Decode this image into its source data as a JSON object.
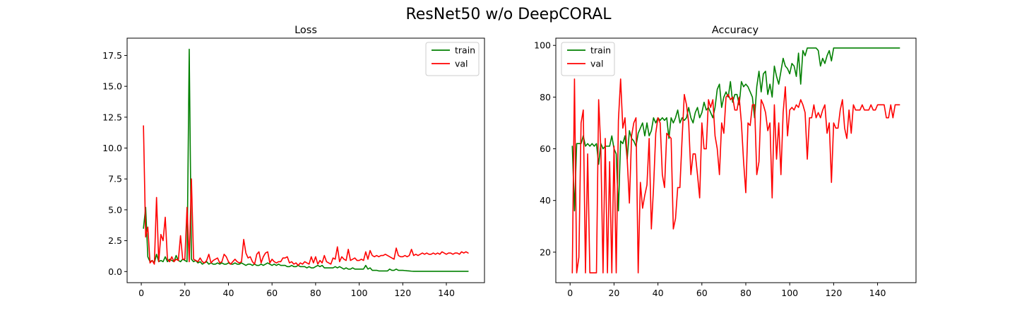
{
  "figure": {
    "title": "ResNet50 w/o DeepCORAL"
  },
  "chart_data": [
    {
      "type": "line",
      "title": "Loss",
      "xlabel": "",
      "ylabel": "",
      "xlim": [
        -6.5,
        157.5
      ],
      "ylim": [
        -0.9,
        18.9
      ],
      "xticks": [
        0,
        20,
        40,
        60,
        80,
        100,
        120,
        140
      ],
      "xtick_labels": [
        "0",
        "20",
        "40",
        "60",
        "80",
        "100",
        "120",
        "140"
      ],
      "yticks": [
        0,
        2.5,
        5,
        7.5,
        10,
        12.5,
        15,
        17.5
      ],
      "ytick_labels": [
        "0.0",
        "2.5",
        "5.0",
        "7.5",
        "10.0",
        "12.5",
        "15.0",
        "17.5"
      ],
      "grid": false,
      "legend": "upper-right",
      "x_start": 1,
      "series": [
        {
          "name": "train",
          "color": "#008000",
          "values": [
            3.5,
            5.2,
            1.2,
            0.8,
            0.9,
            0.7,
            1.4,
            0.8,
            0.9,
            0.8,
            1.2,
            0.8,
            1.0,
            0.9,
            0.8,
            1.3,
            0.9,
            0.8,
            1.0,
            0.9,
            0.8,
            18.0,
            1.0,
            0.8,
            0.9,
            0.7,
            0.8,
            0.6,
            0.7,
            0.8,
            0.6,
            0.7,
            0.6,
            0.6,
            0.7,
            0.6,
            0.7,
            0.6,
            0.6,
            0.7,
            0.6,
            0.6,
            0.7,
            0.6,
            0.6,
            0.7,
            0.6,
            0.5,
            0.6,
            0.6,
            0.5,
            0.6,
            0.5,
            0.5,
            0.6,
            0.5,
            0.6,
            0.7,
            0.6,
            0.5,
            0.6,
            0.5,
            0.6,
            0.5,
            0.5,
            0.5,
            0.4,
            0.4,
            0.5,
            0.4,
            0.4,
            0.5,
            0.4,
            0.4,
            0.4,
            0.3,
            0.4,
            0.3,
            0.3,
            0.4,
            0.5,
            0.4,
            0.5,
            0.3,
            0.3,
            0.3,
            0.3,
            0.3,
            0.4,
            0.3,
            0.4,
            0.3,
            0.2,
            0.3,
            0.2,
            0.2,
            0.3,
            0.2,
            0.2,
            0.2,
            0.2,
            0.2,
            0.5,
            0.2,
            0.3,
            0.1,
            0.1,
            0.1,
            0.05,
            0.05,
            0.05,
            0.05,
            0.05,
            0.2,
            0.1,
            0.1,
            0.2,
            0.1,
            0.1,
            0.1,
            0.08,
            0.06,
            0.05,
            0.03,
            0.02,
            0.02,
            0.02,
            0.02,
            0.02,
            0.02,
            0.02,
            0.02,
            0.02,
            0.02,
            0.02,
            0.02,
            0.02,
            0.02,
            0.02,
            0.02,
            0.02,
            0.02,
            0.02,
            0.02,
            0.02,
            0.02,
            0.02,
            0.02,
            0.02,
            0.02
          ]
        },
        {
          "name": "val",
          "color": "#ff0000",
          "values": [
            11.8,
            2.8,
            3.6,
            0.7,
            0.9,
            0.6,
            6.0,
            0.8,
            3.0,
            2.5,
            4.4,
            1.0,
            0.8,
            1.2,
            0.8,
            1.0,
            0.9,
            2.9,
            1.0,
            1.0,
            5.2,
            0.8,
            7.5,
            1.0,
            0.9,
            0.8,
            1.1,
            0.8,
            0.7,
            0.9,
            1.4,
            0.7,
            0.9,
            1.0,
            1.1,
            0.7,
            0.8,
            1.4,
            1.2,
            0.8,
            0.6,
            0.8,
            1.0,
            0.8,
            0.7,
            0.8,
            2.6,
            1.5,
            1.1,
            1.2,
            0.8,
            0.6,
            1.4,
            1.6,
            0.7,
            1.2,
            1.5,
            1.6,
            0.7,
            1.0,
            0.8,
            0.7,
            0.8,
            0.8,
            1.1,
            1.1,
            1.2,
            0.7,
            0.8,
            0.6,
            0.7,
            0.5,
            0.7,
            0.6,
            0.8,
            0.7,
            0.6,
            1.2,
            0.7,
            1.2,
            0.6,
            0.9,
            0.7,
            1.3,
            0.8,
            0.7,
            0.6,
            1.1,
            1.0,
            2.0,
            0.8,
            1.2,
            1.0,
            0.9,
            1.8,
            0.9,
            1.0,
            1.1,
            0.9,
            0.9,
            1.0,
            0.9,
            1.6,
            1.0,
            1.7,
            1.3,
            1.2,
            1.3,
            1.2,
            1.3,
            1.3,
            1.4,
            1.3,
            1.2,
            1.1,
            1.0,
            1.9,
            1.3,
            1.2,
            1.2,
            1.3,
            1.2,
            1.3,
            1.8,
            1.3,
            1.4,
            1.3,
            1.4,
            1.5,
            1.4,
            1.5,
            1.4,
            1.4,
            1.5,
            1.4,
            1.5,
            1.4,
            1.6,
            1.5,
            1.4,
            1.5,
            1.5,
            1.4,
            1.5,
            1.5,
            1.4,
            1.6,
            1.5,
            1.6,
            1.5
          ]
        }
      ]
    },
    {
      "type": "line",
      "title": "Accuracy",
      "xlabel": "",
      "ylabel": "",
      "xlim": [
        -6.5,
        157.5
      ],
      "ylim": [
        8.2,
        102.8
      ],
      "xticks": [
        0,
        20,
        40,
        60,
        80,
        100,
        120,
        140
      ],
      "xtick_labels": [
        "0",
        "20",
        "40",
        "60",
        "80",
        "100",
        "120",
        "140"
      ],
      "yticks": [
        20,
        40,
        60,
        80,
        100
      ],
      "ytick_labels": [
        "20",
        "40",
        "60",
        "80",
        "100"
      ],
      "grid": false,
      "legend": "upper-left",
      "x_start": 1,
      "series": [
        {
          "name": "train",
          "color": "#008000",
          "values": [
            61,
            36,
            62,
            62,
            62,
            65,
            61,
            62,
            61,
            62,
            61,
            62,
            54,
            62,
            60,
            61,
            61,
            61,
            65,
            60,
            58,
            36,
            63,
            62,
            65,
            56,
            67,
            64,
            63,
            61,
            66,
            68,
            70,
            65,
            70,
            65,
            67,
            72,
            70,
            72,
            71,
            72,
            71,
            72,
            64,
            72,
            70,
            72,
            75,
            70,
            72,
            71,
            72,
            76,
            72,
            70,
            74,
            76,
            72,
            74,
            78,
            75,
            76,
            74,
            72,
            76,
            83,
            85,
            76,
            80,
            82,
            80,
            86,
            78,
            81,
            81,
            77,
            86,
            84,
            85,
            84,
            82,
            80,
            72,
            84,
            90,
            82,
            89,
            90,
            81,
            85,
            80,
            92,
            88,
            85,
            90,
            95,
            92,
            91,
            89,
            93,
            92,
            88,
            97,
            85,
            98,
            96,
            99,
            99,
            99,
            99,
            99,
            98,
            92,
            95,
            93,
            96,
            98,
            94,
            99,
            99,
            99,
            99,
            99,
            99,
            99,
            99,
            99,
            99,
            99,
            99,
            99,
            99,
            99,
            99,
            99,
            99,
            99,
            99,
            99,
            99,
            99,
            99,
            99,
            99,
            99,
            99,
            99,
            99,
            99
          ]
        },
        {
          "name": "val",
          "color": "#ff0000",
          "values": [
            12,
            87,
            12,
            18,
            70,
            75,
            12,
            58,
            12,
            12,
            12,
            12,
            79,
            60,
            12,
            64,
            12,
            55,
            12,
            61,
            12,
            71,
            87,
            68,
            72,
            56,
            39,
            65,
            70,
            72,
            12,
            47,
            37,
            42,
            46,
            64,
            29,
            45,
            66,
            72,
            70,
            50,
            45,
            66,
            65,
            64,
            29,
            33,
            45,
            45,
            64,
            81,
            77,
            70,
            50,
            58,
            58,
            50,
            41,
            70,
            60,
            60,
            79,
            76,
            79,
            65,
            60,
            50,
            70,
            66,
            80,
            81,
            79,
            80,
            75,
            75,
            80,
            70,
            55,
            43,
            70,
            69,
            77,
            77,
            50,
            55,
            79,
            77,
            74,
            67,
            70,
            41,
            77,
            56,
            70,
            50,
            74,
            84,
            65,
            75,
            76,
            75,
            77,
            76,
            79,
            77,
            74,
            56,
            72,
            72,
            77,
            72,
            74,
            72,
            75,
            77,
            66,
            70,
            47,
            70,
            68,
            68,
            75,
            79,
            68,
            64,
            75,
            66,
            77,
            75,
            75,
            75,
            77,
            75,
            75,
            75,
            77,
            75,
            75,
            77,
            77,
            77,
            77,
            72,
            72,
            77,
            72,
            77,
            77,
            77
          ]
        }
      ]
    }
  ]
}
